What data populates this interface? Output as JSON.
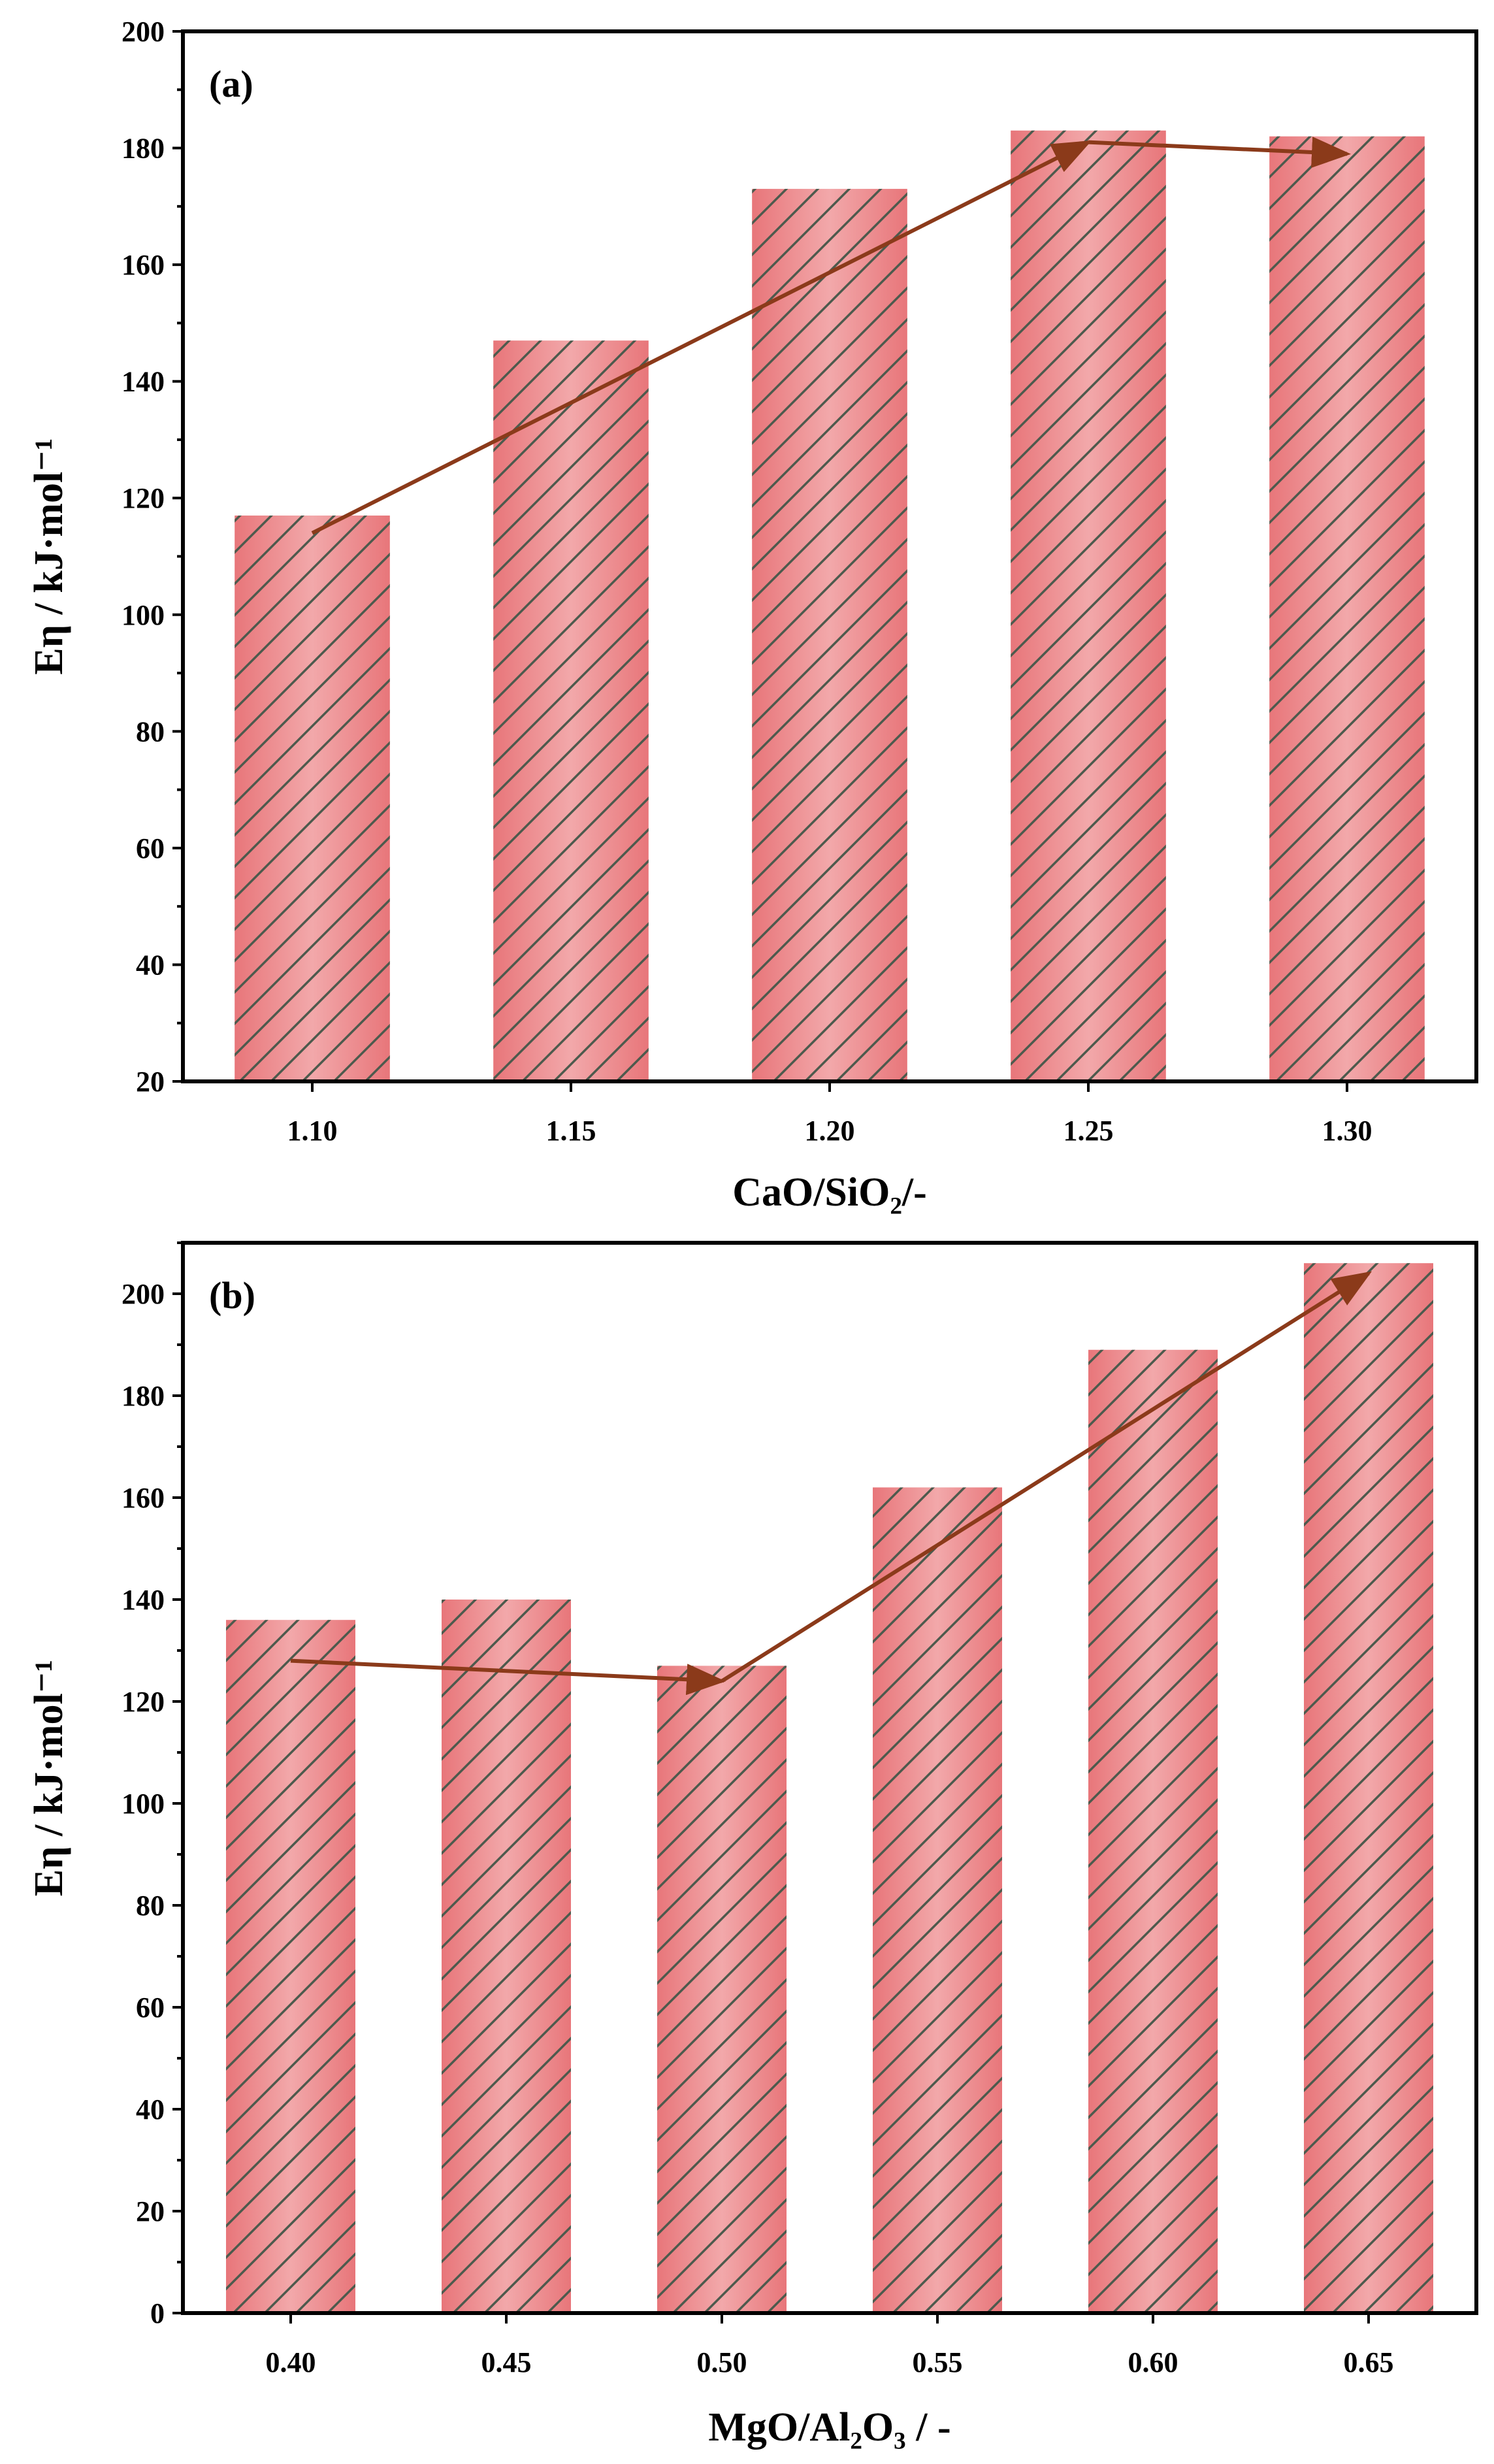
{
  "chart_data": [
    {
      "type": "bar",
      "panel_label": "(a)",
      "categories": [
        "1.10",
        "1.15",
        "1.20",
        "1.25",
        "1.30"
      ],
      "values": [
        117,
        147,
        173,
        183,
        182
      ],
      "xlabel": "CaO/SiO₂/-",
      "ylabel": "Eη / kJ·mol⁻¹",
      "ylim": [
        20,
        200
      ],
      "yticks": [
        20,
        40,
        60,
        80,
        100,
        120,
        140,
        160,
        180,
        200
      ],
      "bar_color": "#e8767a",
      "hatch_color": "#4d5a4d",
      "arrow_color": "#8b3a1a",
      "trend_arrows": [
        {
          "from": {
            "category": "1.10",
            "value": 114
          },
          "to": {
            "category": "1.25",
            "value": 181
          }
        },
        {
          "from": {
            "category": "1.25",
            "value": 181
          },
          "to": {
            "category": "1.30",
            "value": 179
          }
        }
      ]
    },
    {
      "type": "bar",
      "panel_label": "(b)",
      "categories": [
        "0.40",
        "0.45",
        "0.50",
        "0.55",
        "0.60",
        "0.65"
      ],
      "values": [
        136,
        140,
        127,
        162,
        189,
        206
      ],
      "xlabel": "MgO/Al₂O₃ / -",
      "ylabel": "Eη / kJ·mol⁻¹",
      "ylim": [
        0,
        210
      ],
      "yticks": [
        0,
        20,
        40,
        60,
        80,
        100,
        120,
        140,
        160,
        180,
        200
      ],
      "bar_color": "#e8767a",
      "hatch_color": "#4d5a4d",
      "arrow_color": "#8b3a1a",
      "trend_arrows": [
        {
          "from": {
            "category": "0.40",
            "value": 128
          },
          "to": {
            "category": "0.50",
            "value": 124
          }
        },
        {
          "from": {
            "category": "0.50",
            "value": 124
          },
          "to": {
            "category": "0.65",
            "value": 204
          }
        }
      ]
    }
  ]
}
